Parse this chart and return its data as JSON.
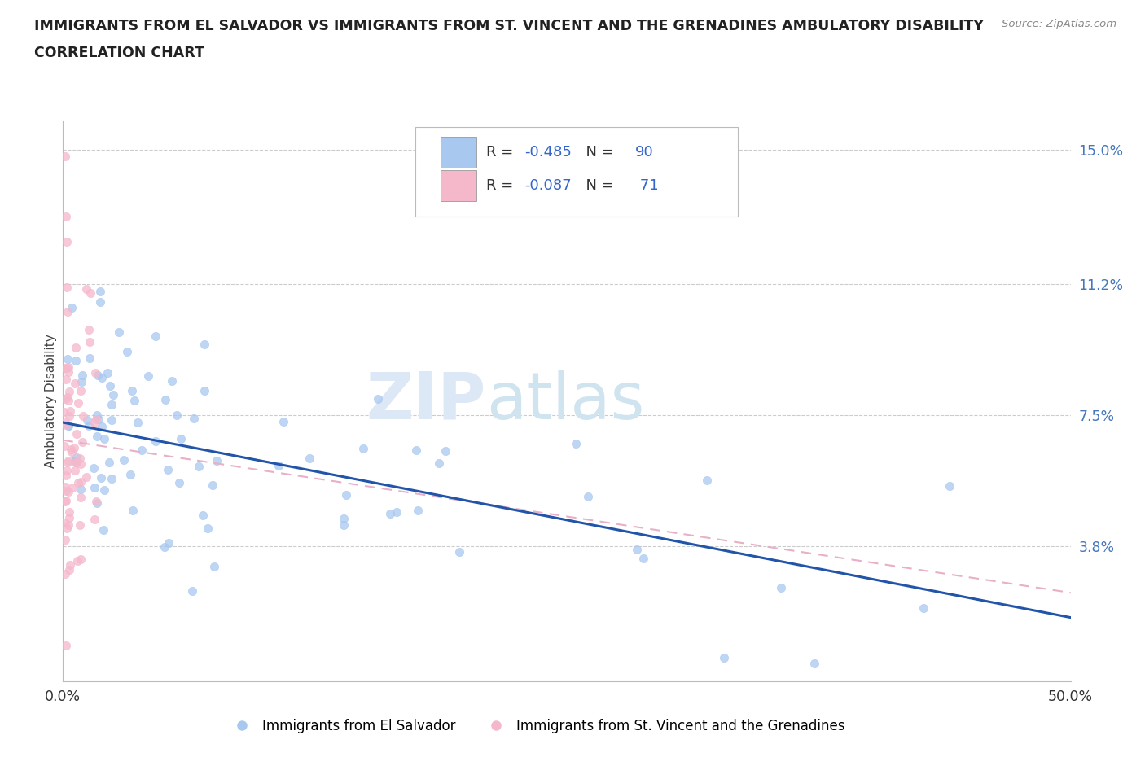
{
  "title_line1": "IMMIGRANTS FROM EL SALVADOR VS IMMIGRANTS FROM ST. VINCENT AND THE GRENADINES AMBULATORY DISABILITY",
  "title_line2": "CORRELATION CHART",
  "source": "Source: ZipAtlas.com",
  "ylabel": "Ambulatory Disability",
  "xmin": 0.0,
  "xmax": 0.5,
  "ymin": 0.0,
  "ymax": 0.158,
  "yticks": [
    0.038,
    0.075,
    0.112,
    0.15
  ],
  "ytick_labels": [
    "3.8%",
    "7.5%",
    "11.2%",
    "15.0%"
  ],
  "xticks": [
    0.0,
    0.5
  ],
  "xtick_labels": [
    "0.0%",
    "50.0%"
  ],
  "grid_color": "#cccccc",
  "el_salvador_color": "#a8c8f0",
  "st_vincent_color": "#f5b8cb",
  "el_salvador_line_color": "#2255aa",
  "st_vincent_line_color": "#e8b0c8",
  "R_el_salvador": -0.485,
  "N_el_salvador": 90,
  "R_st_vincent": -0.087,
  "N_st_vincent": 71,
  "watermark_zip": "ZIP",
  "watermark_atlas": "atlas",
  "legend_label_1": "Immigrants from El Salvador",
  "legend_label_2": "Immigrants from St. Vincent and the Grenadines",
  "legend_r1_text": "R = ",
  "legend_r1_val": "-0.485",
  "legend_n1_text": "N = ",
  "legend_n1_val": "90",
  "legend_r2_text": "R = ",
  "legend_r2_val": "-0.087",
  "legend_n2_text": "N =  ",
  "legend_n2_val": "71",
  "es_line_x0": 0.0,
  "es_line_y0": 0.073,
  "es_line_x1": 0.5,
  "es_line_y1": 0.018,
  "sv_line_x0": 0.0,
  "sv_line_y0": 0.068,
  "sv_line_x1": 0.5,
  "sv_line_y1": 0.025
}
